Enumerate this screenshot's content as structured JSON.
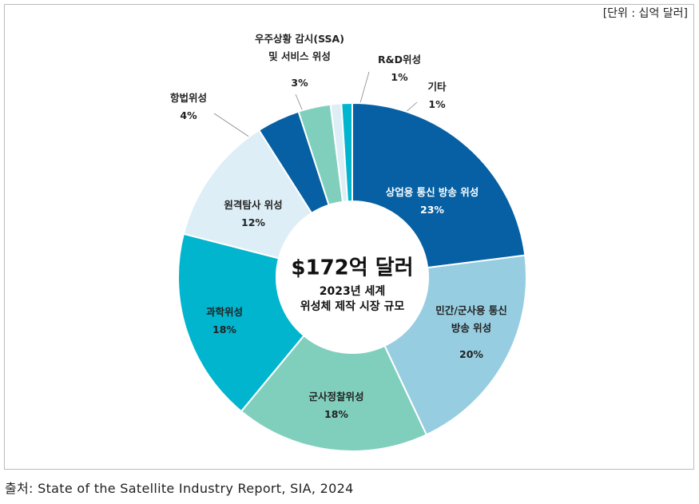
{
  "chart_data": {
    "type": "donut",
    "unit_note": "[단위 : 십억 달러]",
    "title": "$172억 달러",
    "subtitle": "2023년 세계\n위성체 제작 시장 규모",
    "categories": [
      "상업용 통신 방송 위성",
      "민간/군사용 통신\n방송 위성",
      "군사정찰위성",
      "과학위성",
      "원격탐사 위성",
      "항법위성",
      "우주상황 감시(SSA)\n및 서비스 위성",
      "R&D위성",
      "기타"
    ],
    "values": [
      23,
      20,
      18,
      18,
      12,
      4,
      3,
      1,
      1
    ],
    "value_labels": [
      "23%",
      "20%",
      "18%",
      "18%",
      "12%",
      "4%",
      "3%",
      "1%",
      "1%"
    ],
    "colors": [
      "#0660a3",
      "#96cde0",
      "#80cfbd",
      "#00b5cd",
      "#ddeef6",
      "#0660a3",
      "#80cfbd",
      "#ddeef6",
      "#00b5cd"
    ],
    "source": "출처: State of the Satellite Industry Report, SIA, 2024"
  }
}
